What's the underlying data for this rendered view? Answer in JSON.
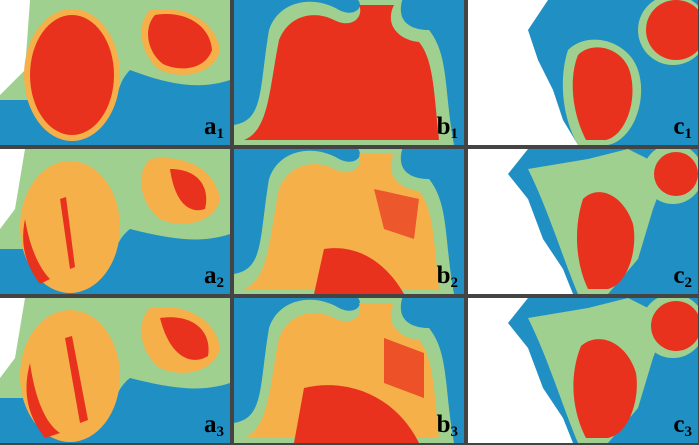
{
  "panels": [
    {
      "id": "a1",
      "letter": "a",
      "index": "1"
    },
    {
      "id": "b1",
      "letter": "b",
      "index": "1"
    },
    {
      "id": "c1",
      "letter": "c",
      "index": "1"
    },
    {
      "id": "a2",
      "letter": "a",
      "index": "2"
    },
    {
      "id": "b2",
      "letter": "b",
      "index": "2"
    },
    {
      "id": "c2",
      "letter": "c",
      "index": "2"
    },
    {
      "id": "a3",
      "letter": "a",
      "index": "3"
    },
    {
      "id": "b3",
      "letter": "b",
      "index": "3"
    },
    {
      "id": "c3",
      "letter": "c",
      "index": "3"
    }
  ],
  "colors": {
    "water_blue": "#1f8fc4",
    "buffer_green": "#9fd08f",
    "orange": "#f5b04a",
    "red": "#e8321e",
    "blank": "#ffffff"
  }
}
